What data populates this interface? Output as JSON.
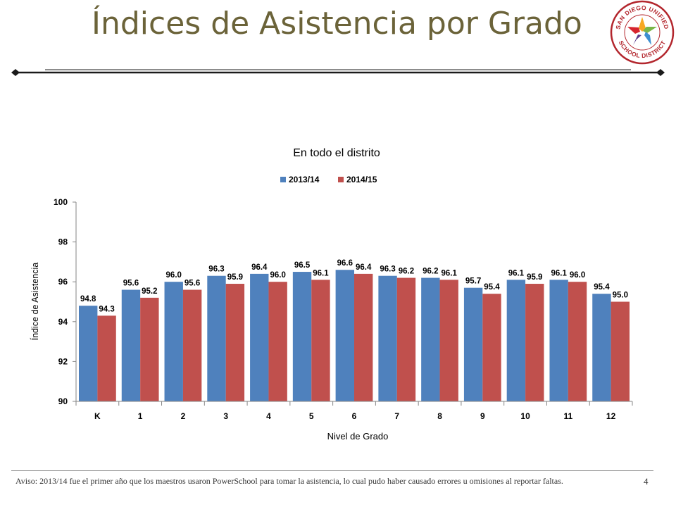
{
  "slide": {
    "title": "Índices de Asistencia por Grado",
    "footnote": "Aviso: 2013/14 fue el primer año que los maestros usaron PowerSchool para tomar la asistencia, lo cual pudo haber causado errores u omisiones al reportar faltas.",
    "page_number": "4",
    "logo_text_top": "SAN DIEGO UNIFIED",
    "logo_text_bottom": "SCHOOL DISTRICT",
    "title_color": "#6b6339"
  },
  "chart_data": {
    "type": "bar",
    "title": "En todo el distrito",
    "xlabel": "Nivel de Grado",
    "ylabel": "Índice de Asistencia",
    "categories": [
      "K",
      "1",
      "2",
      "3",
      "4",
      "5",
      "6",
      "7",
      "8",
      "9",
      "10",
      "11",
      "12"
    ],
    "series": [
      {
        "name": "2013/14",
        "color": "#4f81bd",
        "values": [
          94.8,
          95.6,
          96.0,
          96.3,
          96.4,
          96.5,
          96.6,
          96.3,
          96.2,
          95.7,
          96.1,
          96.1,
          95.4
        ]
      },
      {
        "name": "2014/15",
        "color": "#c0504d",
        "values": [
          94.3,
          95.2,
          95.6,
          95.9,
          96.0,
          96.1,
          96.4,
          96.2,
          96.1,
          95.4,
          95.9,
          96.0,
          95.0
        ]
      }
    ],
    "ylim": [
      90,
      100
    ],
    "yticks": [
      90,
      92,
      94,
      96,
      98,
      100
    ],
    "grid": false,
    "legend_position": "top"
  }
}
